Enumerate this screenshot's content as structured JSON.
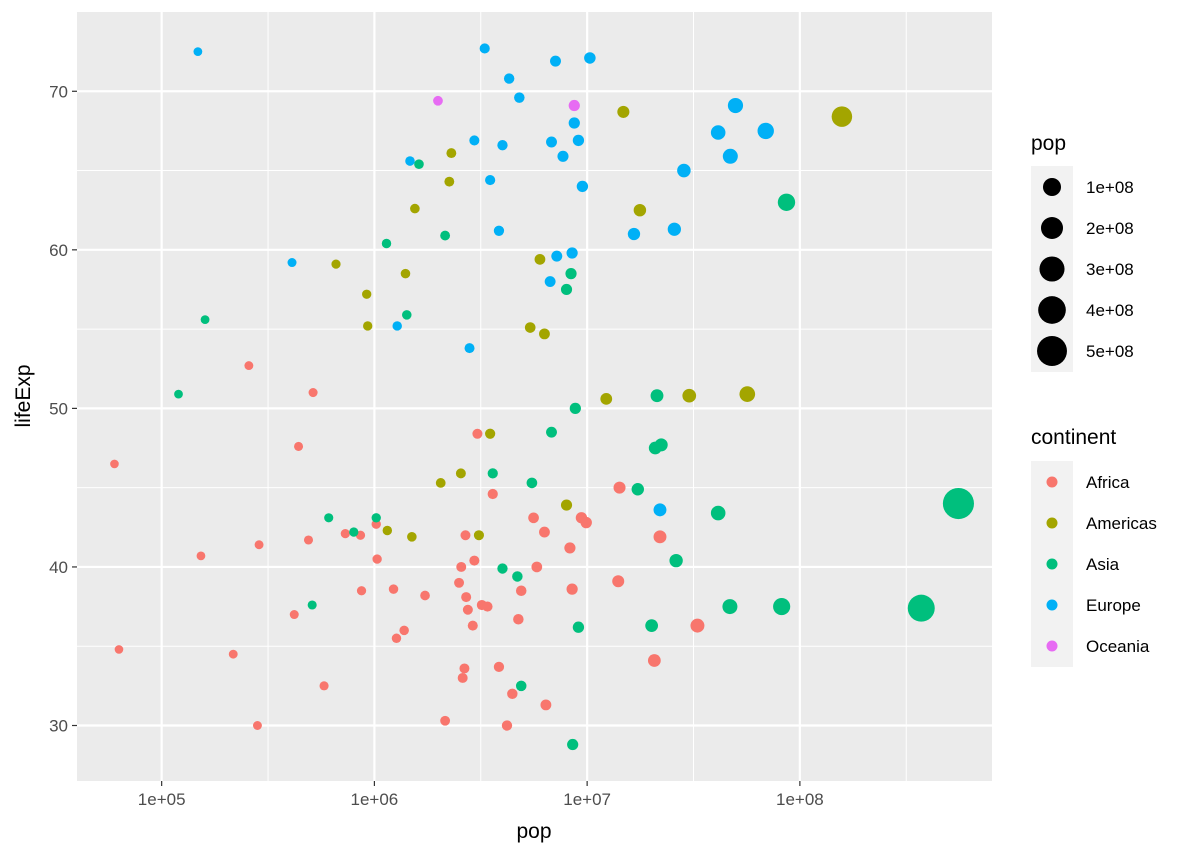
{
  "chart_data": {
    "type": "scatter",
    "xlabel": "pop",
    "ylabel": "lifeExp",
    "x_scale": "log10",
    "xlim": [
      40000,
      800000000
    ],
    "ylim": [
      26.5,
      75
    ],
    "x_ticks": [
      100000,
      1000000,
      10000000,
      100000000
    ],
    "x_tick_labels": [
      "1e+05",
      "1e+06",
      "1e+07",
      "1e+08"
    ],
    "y_ticks": [
      30,
      40,
      50,
      60,
      70
    ],
    "y_tick_labels": [
      "30",
      "40",
      "50",
      "60",
      "70"
    ],
    "grid": true,
    "size_legend": {
      "title": "pop",
      "values": [
        100000000,
        200000000,
        300000000,
        400000000,
        500000000
      ],
      "labels": [
        "1e+08",
        "2e+08",
        "3e+08",
        "4e+08",
        "5e+08"
      ]
    },
    "color_legend": {
      "title": "continent",
      "categories": [
        "Africa",
        "Americas",
        "Asia",
        "Europe",
        "Oceania"
      ],
      "colors": [
        "#F8766D",
        "#A3A500",
        "#00BF7D",
        "#00B0F6",
        "#E76BF3"
      ]
    },
    "series": [
      {
        "name": "Africa",
        "color": "#F8766D",
        "points": [
          [
            60000,
            46.5
          ],
          [
            63000,
            34.8
          ],
          [
            153000,
            40.7
          ],
          [
            217000,
            34.5
          ],
          [
            257000,
            52.7
          ],
          [
            282000,
            30.0
          ],
          [
            287000,
            41.4
          ],
          [
            420000,
            37.0
          ],
          [
            440000,
            47.6
          ],
          [
            490000,
            41.7
          ],
          [
            515000,
            51.0
          ],
          [
            580000,
            32.5
          ],
          [
            730000,
            42.1
          ],
          [
            860000,
            42.0
          ],
          [
            870000,
            38.5
          ],
          [
            1020000,
            42.7
          ],
          [
            1030000,
            40.5
          ],
          [
            1230000,
            38.6
          ],
          [
            1270000,
            35.5
          ],
          [
            1380000,
            36.0
          ],
          [
            1730000,
            38.2
          ],
          [
            2150000,
            30.3
          ],
          [
            2500000,
            39.0
          ],
          [
            2560000,
            40.0
          ],
          [
            2600000,
            33.0
          ],
          [
            2650000,
            33.6
          ],
          [
            2680000,
            42.0
          ],
          [
            2700000,
            38.1
          ],
          [
            2750000,
            37.3
          ],
          [
            2900000,
            36.3
          ],
          [
            2950000,
            40.4
          ],
          [
            3050000,
            48.4
          ],
          [
            3200000,
            37.6
          ],
          [
            3400000,
            37.5
          ],
          [
            3600000,
            44.6
          ],
          [
            3850000,
            33.7
          ],
          [
            4200000,
            30.0
          ],
          [
            4450000,
            32.0
          ],
          [
            4750000,
            36.7
          ],
          [
            4900000,
            38.5
          ],
          [
            5600000,
            43.1
          ],
          [
            5800000,
            40.0
          ],
          [
            6300000,
            42.2
          ],
          [
            6400000,
            31.3
          ],
          [
            8300000,
            41.2
          ],
          [
            8500000,
            38.6
          ],
          [
            9400000,
            43.1
          ],
          [
            9900000,
            42.8
          ],
          [
            14000000,
            39.1
          ],
          [
            14200000,
            45.0
          ],
          [
            20700000,
            34.1
          ],
          [
            22000000,
            41.9
          ],
          [
            33000000,
            36.3
          ]
        ]
      },
      {
        "name": "Americas",
        "color": "#A3A500",
        "points": [
          [
            660000,
            59.1
          ],
          [
            920000,
            57.2
          ],
          [
            930000,
            55.2
          ],
          [
            1150000,
            42.3
          ],
          [
            1400000,
            58.5
          ],
          [
            1500000,
            41.9
          ],
          [
            1550000,
            62.6
          ],
          [
            2050000,
            45.3
          ],
          [
            2250000,
            64.3
          ],
          [
            2300000,
            66.1
          ],
          [
            2550000,
            45.9
          ],
          [
            3100000,
            42.0
          ],
          [
            3500000,
            48.4
          ],
          [
            5400000,
            55.1
          ],
          [
            6000000,
            59.4
          ],
          [
            6300000,
            54.7
          ],
          [
            8000000,
            43.9
          ],
          [
            12300000,
            50.6
          ],
          [
            14800000,
            68.7
          ],
          [
            17700000,
            62.5
          ],
          [
            30200000,
            50.8
          ],
          [
            56600000,
            50.9
          ],
          [
            157600000,
            68.4
          ]
        ]
      },
      {
        "name": "Asia",
        "color": "#00BF7D",
        "points": [
          [
            120000,
            50.9
          ],
          [
            160000,
            55.6
          ],
          [
            510000,
            37.6
          ],
          [
            610000,
            43.1
          ],
          [
            800000,
            42.2
          ],
          [
            1020000,
            43.1
          ],
          [
            1140000,
            60.4
          ],
          [
            1420000,
            55.9
          ],
          [
            1620000,
            65.4
          ],
          [
            2150000,
            60.9
          ],
          [
            3600000,
            45.9
          ],
          [
            4000000,
            39.9
          ],
          [
            4700000,
            39.4
          ],
          [
            4900000,
            32.5
          ],
          [
            5500000,
            45.3
          ],
          [
            6800000,
            48.5
          ],
          [
            8000000,
            57.5
          ],
          [
            8400000,
            58.5
          ],
          [
            8550000,
            28.8
          ],
          [
            8800000,
            50.0
          ],
          [
            9100000,
            36.2
          ],
          [
            17300000,
            44.9
          ],
          [
            20100000,
            36.3
          ],
          [
            20900000,
            47.5
          ],
          [
            21300000,
            50.8
          ],
          [
            22300000,
            47.7
          ],
          [
            26200000,
            40.4
          ],
          [
            41300000,
            43.4
          ],
          [
            46900000,
            37.5
          ],
          [
            82100000,
            37.5
          ],
          [
            86500000,
            63.0
          ],
          [
            372000000,
            37.4
          ],
          [
            556300000,
            44.0
          ]
        ]
      },
      {
        "name": "Europe",
        "color": "#00B0F6",
        "points": [
          [
            148000,
            72.5
          ],
          [
            410000,
            59.2
          ],
          [
            1280000,
            55.2
          ],
          [
            1470000,
            65.6
          ],
          [
            2800000,
            53.8
          ],
          [
            2950000,
            66.9
          ],
          [
            3300000,
            72.7
          ],
          [
            3500000,
            64.4
          ],
          [
            3850000,
            61.2
          ],
          [
            4000000,
            66.6
          ],
          [
            4300000,
            70.8
          ],
          [
            4800000,
            69.6
          ],
          [
            6700000,
            58.0
          ],
          [
            6800000,
            66.8
          ],
          [
            7100000,
            71.9
          ],
          [
            7200000,
            59.6
          ],
          [
            7700000,
            65.9
          ],
          [
            8500000,
            59.8
          ],
          [
            8700000,
            68.0
          ],
          [
            9100000,
            66.9
          ],
          [
            9500000,
            64.0
          ],
          [
            10300000,
            72.1
          ],
          [
            16600000,
            61.0
          ],
          [
            22000000,
            43.6
          ],
          [
            25700000,
            61.3
          ],
          [
            28500000,
            65.0
          ],
          [
            41300000,
            67.4
          ],
          [
            47100000,
            65.9
          ],
          [
            49800000,
            69.1
          ],
          [
            69100000,
            67.5
          ]
        ]
      },
      {
        "name": "Oceania",
        "color": "#E76BF3",
        "points": [
          [
            1990000,
            69.4
          ],
          [
            8700000,
            69.1
          ]
        ]
      }
    ]
  }
}
